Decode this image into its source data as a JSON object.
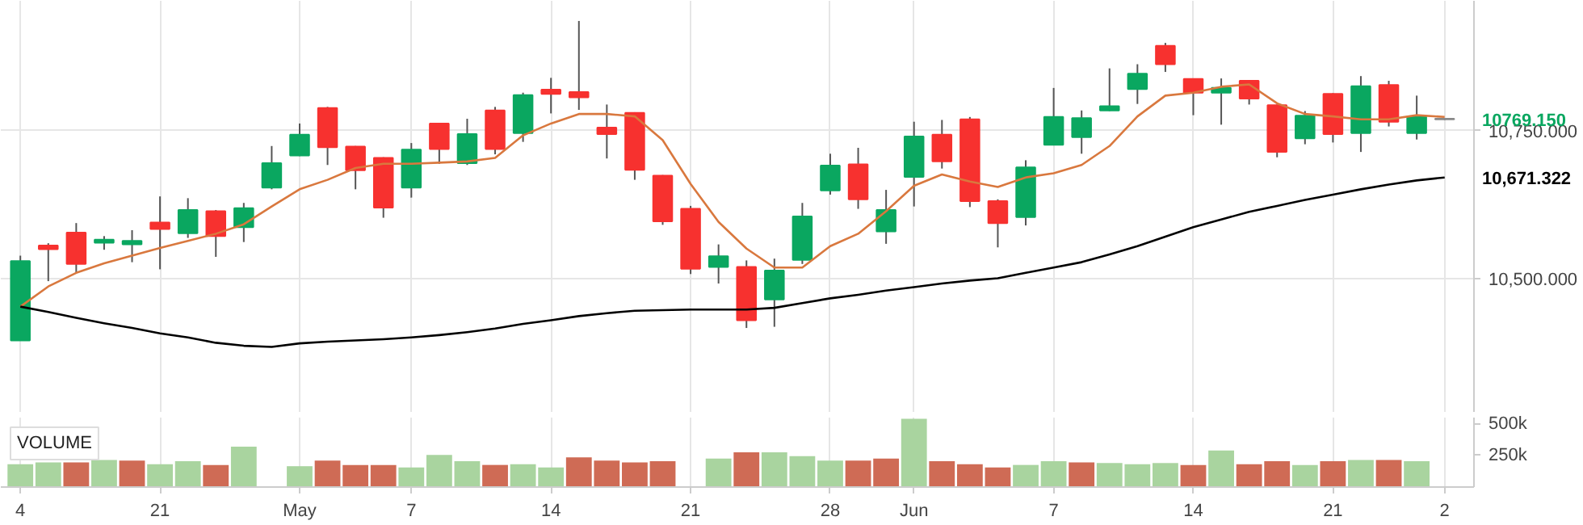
{
  "chart_data": [
    {
      "type": "candlestick",
      "categories": [
        null,
        null,
        null,
        null,
        null,
        null,
        null,
        null,
        null,
        null,
        null,
        null,
        null,
        null,
        null,
        null,
        null,
        null,
        null,
        null,
        null,
        null,
        null,
        null,
        null,
        null,
        null,
        null,
        null,
        null,
        null,
        null,
        null,
        null,
        null,
        null,
        null,
        null,
        null,
        null,
        null,
        null,
        null,
        null,
        null,
        null,
        null,
        null,
        null,
        null,
        null,
        null
      ],
      "ohlc": [
        [
          10396,
          10539,
          10396,
          10530
        ],
        [
          10556,
          10560,
          10496,
          10550
        ],
        [
          10578,
          10594,
          10510,
          10525
        ],
        [
          10561,
          10572,
          10549,
          10566
        ],
        [
          10558,
          10582,
          10528,
          10564
        ],
        [
          10595,
          10639,
          10516,
          10584
        ],
        [
          10577,
          10636,
          10569,
          10616
        ],
        [
          10614,
          10616,
          10537,
          10572
        ],
        [
          10587,
          10628,
          10562,
          10619
        ],
        [
          10654,
          10724,
          10651,
          10695
        ],
        [
          10708,
          10762,
          10707,
          10743
        ],
        [
          10788,
          10790,
          10692,
          10722
        ],
        [
          10723,
          10724,
          10651,
          10683
        ],
        [
          10704,
          10705,
          10603,
          10620
        ],
        [
          10654,
          10729,
          10637,
          10718
        ],
        [
          10762,
          10763,
          10694,
          10719
        ],
        [
          10695,
          10770,
          10692,
          10744
        ],
        [
          10784,
          10790,
          10710,
          10719
        ],
        [
          10746,
          10814,
          10731,
          10810
        ],
        [
          10819,
          10839,
          10779,
          10812
        ],
        [
          10815,
          10935,
          10785,
          10806
        ],
        [
          10755,
          10794,
          10703,
          10744
        ],
        [
          10780,
          10781,
          10667,
          10684
        ],
        [
          10674,
          10675,
          10591,
          10597
        ],
        [
          10618,
          10623,
          10508,
          10517
        ],
        [
          10520,
          10558,
          10492,
          10538
        ],
        [
          10520,
          10531,
          10417,
          10430
        ],
        [
          10465,
          10534,
          10419,
          10514
        ],
        [
          10532,
          10628,
          10525,
          10605
        ],
        [
          10649,
          10711,
          10642,
          10691
        ],
        [
          10693,
          10721,
          10618,
          10634
        ],
        [
          10580,
          10650,
          10559,
          10616
        ],
        [
          10672,
          10765,
          10622,
          10740
        ],
        [
          10743,
          10768,
          10686,
          10698
        ],
        [
          10769,
          10773,
          10621,
          10631
        ],
        [
          10631,
          10634,
          10553,
          10594
        ],
        [
          10604,
          10700,
          10590,
          10688
        ],
        [
          10726,
          10822,
          10725,
          10773
        ],
        [
          10739,
          10784,
          10711,
          10771
        ],
        [
          10784,
          10855,
          10783,
          10791
        ],
        [
          10820,
          10862,
          10795,
          10846
        ],
        [
          10893,
          10898,
          10849,
          10862
        ],
        [
          10837,
          10838,
          10776,
          10814
        ],
        [
          10814,
          10838,
          10760,
          10822
        ],
        [
          10834,
          10835,
          10794,
          10804
        ],
        [
          10793,
          10794,
          10705,
          10714
        ],
        [
          10737,
          10783,
          10727,
          10775
        ],
        [
          10812,
          10813,
          10730,
          10744
        ],
        [
          10746,
          10842,
          10714,
          10825
        ],
        [
          10827,
          10834,
          10757,
          10765
        ],
        [
          10746,
          10809,
          10735,
          10774
        ],
        [
          10770,
          10771,
          10768,
          10769.15
        ]
      ],
      "colors": [
        "#0aa760",
        "#f7312f",
        "#f7312f",
        "#0aa760",
        "#0aa760",
        "#f7312f",
        "#0aa760",
        "#f7312f",
        "#0aa760",
        "#0aa760",
        "#0aa760",
        "#f7312f",
        "#f7312f",
        "#f7312f",
        "#0aa760",
        "#f7312f",
        "#0aa760",
        "#f7312f",
        "#0aa760",
        "#f7312f",
        "#f7312f",
        "#f7312f",
        "#f7312f",
        "#f7312f",
        "#f7312f",
        "#0aa760",
        "#f7312f",
        "#0aa760",
        "#0aa760",
        "#0aa760",
        "#f7312f",
        "#0aa760",
        "#0aa760",
        "#f7312f",
        "#f7312f",
        "#f7312f",
        "#0aa760",
        "#0aa760",
        "#0aa760",
        "#0aa760",
        "#0aa760",
        "#f7312f",
        "#f7312f",
        "#0aa760",
        "#f7312f",
        "#f7312f",
        "#0aa760",
        "#f7312f",
        "#0aa760",
        "#f7312f",
        "#0aa760",
        "#888888"
      ],
      "series": [
        {
          "type": "line",
          "color": "#d9783e",
          "values": [
            10453,
            10487,
            10510,
            10526,
            10539,
            10552,
            10564,
            10576,
            10592,
            10622,
            10651,
            10667,
            10687,
            10694,
            10694,
            10696,
            10698,
            10704,
            10742,
            10762,
            10778,
            10778,
            10774,
            10734,
            10660,
            10596,
            10551,
            10519,
            10519,
            10555,
            10576,
            10614,
            10657,
            10676,
            10664,
            10655,
            10671,
            10678,
            10692,
            10724,
            10774,
            10809,
            10814,
            10824,
            10828,
            10796,
            10778,
            10774,
            10769,
            10769,
            10776,
            10773
          ]
        },
        {
          "type": "line",
          "color": "#000000",
          "values": [
            10453,
            10444,
            10434,
            10425,
            10417,
            10408,
            10401,
            10392,
            10387,
            10385,
            10391,
            10394,
            10396,
            10398,
            10401,
            10405,
            10410,
            10416,
            10424,
            10430,
            10437,
            10442,
            10446,
            10447,
            10448,
            10448,
            10448,
            10451,
            10459,
            10467,
            10473,
            10480,
            10486,
            10492,
            10497,
            10501,
            10510,
            10519,
            10528,
            10541,
            10555,
            10571,
            10587,
            10600,
            10613,
            10623,
            10633,
            10642,
            10651,
            10659,
            10666,
            10671
          ]
        }
      ],
      "ylim": [
        10274,
        10969
      ],
      "yticks": [
        {
          "value": 10500,
          "label": "10,500.000"
        },
        {
          "value": 10750,
          "label": "10,750.000"
        }
      ],
      "annotations": [
        "10769.150",
        "10,671.322"
      ],
      "grid": true,
      "tick_labels": "y"
    },
    {
      "type": "bar",
      "title": "VOLUME",
      "categories": [
        "4",
        null,
        null,
        null,
        null,
        "21",
        null,
        null,
        null,
        null,
        "May",
        null,
        null,
        null,
        "7",
        null,
        null,
        null,
        null,
        "14",
        null,
        null,
        null,
        null,
        "21",
        null,
        null,
        null,
        null,
        "28",
        null,
        null,
        "Jun",
        null,
        null,
        null,
        null,
        "7",
        null,
        null,
        null,
        null,
        "14",
        null,
        null,
        null,
        null,
        "21",
        null,
        null,
        null,
        "2"
      ],
      "values": [
        180000,
        195000,
        195000,
        215000,
        210000,
        180000,
        205000,
        175000,
        320000,
        null,
        165000,
        210000,
        175000,
        175000,
        155000,
        255000,
        205000,
        175000,
        180000,
        155000,
        235000,
        210000,
        195000,
        205000,
        null,
        225000,
        275000,
        275000,
        245000,
        210000,
        210000,
        225000,
        540000,
        205000,
        180000,
        155000,
        175000,
        205000,
        195000,
        190000,
        180000,
        190000,
        175000,
        290000,
        180000,
        205000,
        175000,
        205000,
        215000,
        215000,
        205000,
        null
      ],
      "colors": [
        "#a9d49f",
        "#a9d49f",
        "#cf6b55",
        "#a9d49f",
        "#cf6b55",
        "#a9d49f",
        "#a9d49f",
        "#cf6b55",
        "#a9d49f",
        "#a9d49f",
        "#a9d49f",
        "#cf6b55",
        "#cf6b55",
        "#cf6b55",
        "#a9d49f",
        "#a9d49f",
        "#a9d49f",
        "#cf6b55",
        "#a9d49f",
        "#a9d49f",
        "#cf6b55",
        "#cf6b55",
        "#cf6b55",
        "#cf6b55",
        "#a9d49f",
        "#a9d49f",
        "#cf6b55",
        "#a9d49f",
        "#a9d49f",
        "#a9d49f",
        "#cf6b55",
        "#cf6b55",
        "#a9d49f",
        "#cf6b55",
        "#cf6b55",
        "#cf6b55",
        "#a9d49f",
        "#a9d49f",
        "#cf6b55",
        "#a9d49f",
        "#a9d49f",
        "#a9d49f",
        "#cf6b55",
        "#a9d49f",
        "#cf6b55",
        "#cf6b55",
        "#a9d49f",
        "#cf6b55",
        "#a9d49f",
        "#cf6b55",
        "#a9d49f",
        "#a9d49f"
      ],
      "ylim": [
        0,
        550000
      ],
      "yticks": [
        {
          "value": 250000,
          "label": "250k"
        },
        {
          "value": 500000,
          "label": "500k"
        }
      ],
      "grid": "x"
    }
  ]
}
